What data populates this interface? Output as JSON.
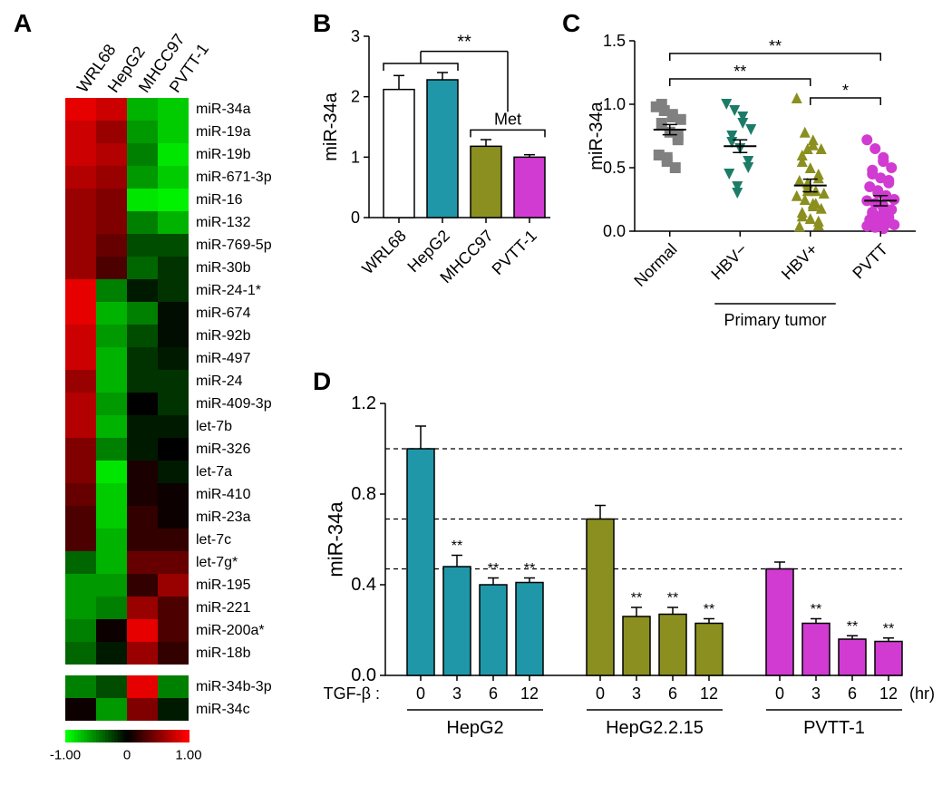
{
  "panels": {
    "A": "A",
    "B": "B",
    "C": "C",
    "D": "D"
  },
  "colors": {
    "wrl68": "#ffffff",
    "hepg2": "#1f97a8",
    "mhcc97": "#8a8f1f",
    "pvtt": "#d13bd1",
    "normal": "#808080",
    "hbvneg": "#1c7c68",
    "hbvpos": "#8a8f1f",
    "pvtt_c": "#d13bd1",
    "axis": "#000000",
    "bg": "#ffffff"
  },
  "heatmap": {
    "columns": [
      "WRL68",
      "HepG2",
      "MHCC97",
      "PVTT-1"
    ],
    "rows": [
      "miR-34a",
      "miR-19a",
      "miR-19b",
      "miR-671-3p",
      "miR-16",
      "miR-132",
      "miR-769-5p",
      "miR-30b",
      "miR-24-1*",
      "miR-674",
      "miR-92b",
      "miR-497",
      "miR-24",
      "miR-409-3p",
      "let-7b",
      "miR-326",
      "let-7a",
      "miR-410",
      "miR-23a",
      "let-7c",
      "let-7g*",
      "miR-195",
      "miR-221",
      "miR-200a*",
      "miR-18b"
    ],
    "rows2": [
      "miR-34b-3p",
      "miR-34c"
    ],
    "scale_labels": [
      "-1.00",
      "0",
      "1.00"
    ],
    "values": [
      [
        0.9,
        0.8,
        -0.7,
        -0.8
      ],
      [
        0.8,
        0.6,
        -0.6,
        -0.8
      ],
      [
        0.8,
        0.7,
        -0.5,
        -0.9
      ],
      [
        0.7,
        0.6,
        -0.6,
        -0.8
      ],
      [
        0.6,
        0.5,
        -0.9,
        -0.95
      ],
      [
        0.6,
        0.5,
        -0.5,
        -0.7
      ],
      [
        0.6,
        0.4,
        -0.3,
        -0.3
      ],
      [
        0.6,
        0.3,
        -0.4,
        -0.2
      ],
      [
        0.9,
        -0.5,
        -0.1,
        -0.2
      ],
      [
        0.9,
        -0.7,
        -0.5,
        -0.05
      ],
      [
        0.8,
        -0.6,
        -0.3,
        -0.05
      ],
      [
        0.8,
        -0.7,
        -0.2,
        -0.1
      ],
      [
        0.6,
        -0.7,
        -0.2,
        -0.2
      ],
      [
        0.7,
        -0.6,
        0.0,
        -0.2
      ],
      [
        0.7,
        -0.7,
        -0.1,
        -0.1
      ],
      [
        0.5,
        -0.5,
        -0.1,
        0.0
      ],
      [
        0.5,
        -0.9,
        0.1,
        -0.1
      ],
      [
        0.4,
        -0.8,
        0.1,
        0.05
      ],
      [
        0.3,
        -0.8,
        0.2,
        0.05
      ],
      [
        0.3,
        -0.7,
        0.2,
        0.2
      ],
      [
        -0.4,
        -0.7,
        0.4,
        0.4
      ],
      [
        -0.6,
        -0.6,
        0.2,
        0.6
      ],
      [
        -0.6,
        -0.5,
        0.6,
        0.3
      ],
      [
        -0.5,
        0.05,
        0.9,
        0.3
      ],
      [
        -0.4,
        -0.1,
        0.6,
        0.2
      ]
    ],
    "values2": [
      [
        -0.5,
        -0.3,
        0.9,
        -0.5
      ],
      [
        0.05,
        -0.6,
        0.5,
        -0.1
      ]
    ]
  },
  "panelB": {
    "ylabel": "miR-34a",
    "ymax": 3,
    "ytick": 1,
    "set": [
      "WRL68",
      "HepG2",
      "MHCC97",
      "PVTT-1"
    ],
    "vals": [
      2.12,
      2.28,
      1.18,
      1.0
    ],
    "errs": [
      0.23,
      0.12,
      0.11,
      0.04
    ],
    "met_label": "Met",
    "sig": "**"
  },
  "panelC": {
    "ylabel": "miR-34a",
    "ymax": 1.5,
    "ytick": 0.5,
    "groups": [
      "Normal",
      "HBV−",
      "HBV+",
      "PVTT"
    ],
    "primary_label": "Primary tumor",
    "sig1": "**",
    "sig2": "**",
    "sig3": "*",
    "means": [
      0.8,
      0.67,
      0.36,
      0.24
    ],
    "sems": [
      0.04,
      0.05,
      0.05,
      0.04
    ],
    "points": {
      "Normal": [
        0.98,
        0.95,
        0.92,
        0.9,
        0.88,
        0.85,
        1.0,
        0.78,
        0.75,
        0.72,
        0.6,
        0.58,
        0.55,
        0.5
      ],
      "HBVneg": [
        1.0,
        0.95,
        0.9,
        0.85,
        0.8,
        0.75,
        0.7,
        0.65,
        0.55,
        0.5,
        0.45,
        0.35,
        0.3
      ],
      "HBVpos": [
        1.05,
        0.78,
        0.72,
        0.68,
        0.65,
        0.6,
        0.55,
        0.5,
        0.45,
        0.42,
        0.4,
        0.38,
        0.35,
        0.32,
        0.3,
        0.28,
        0.25,
        0.22,
        0.2,
        0.18,
        0.15,
        0.12,
        0.1,
        0.08,
        0.05,
        0.04,
        0.65,
        0.32,
        0.22
      ],
      "PVTT": [
        0.72,
        0.65,
        0.58,
        0.55,
        0.5,
        0.48,
        0.45,
        0.42,
        0.4,
        0.38,
        0.35,
        0.32,
        0.3,
        0.28,
        0.25,
        0.24,
        0.22,
        0.2,
        0.18,
        0.17,
        0.15,
        0.14,
        0.12,
        0.11,
        0.1,
        0.09,
        0.08,
        0.07,
        0.06,
        0.05,
        0.04,
        0.03,
        0.02,
        0.55
      ]
    }
  },
  "panelD": {
    "ylabel": "miR-34a",
    "ymax": 1.2,
    "ytick": 0.4,
    "xlabel_prefix": "TGF-β :",
    "hr": "(hr)",
    "times": [
      "0",
      "3",
      "6",
      "12"
    ],
    "groups": [
      "HepG2",
      "HepG2.2.15",
      "PVTT-1"
    ],
    "vals": {
      "HepG2": [
        1.0,
        0.48,
        0.4,
        0.41
      ],
      "HepG2215": [
        0.69,
        0.26,
        0.27,
        0.23
      ],
      "PVTT1": [
        0.47,
        0.23,
        0.16,
        0.15
      ]
    },
    "errs": {
      "HepG2": [
        0.1,
        0.05,
        0.03,
        0.02
      ],
      "HepG2215": [
        0.06,
        0.04,
        0.03,
        0.02
      ],
      "PVTT1": [
        0.03,
        0.02,
        0.015,
        0.015
      ]
    },
    "dashed_y": [
      1.0,
      0.69,
      0.47
    ],
    "sig": "**"
  }
}
